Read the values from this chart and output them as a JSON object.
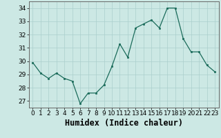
{
  "x": [
    0,
    1,
    2,
    3,
    4,
    5,
    6,
    7,
    8,
    9,
    10,
    11,
    12,
    13,
    14,
    15,
    16,
    17,
    18,
    19,
    20,
    21,
    22,
    23
  ],
  "y": [
    29.9,
    29.1,
    28.7,
    29.1,
    28.7,
    28.5,
    26.8,
    27.6,
    27.6,
    28.2,
    29.6,
    31.3,
    30.3,
    32.5,
    32.8,
    33.1,
    32.5,
    34.0,
    34.0,
    31.7,
    30.7,
    30.7,
    29.7,
    29.2
  ],
  "line_color": "#1a6b5a",
  "marker_color": "#1a6b5a",
  "bg_color": "#cce8e4",
  "grid_color": "#aacfcc",
  "xlabel": "Humidex (Indice chaleur)",
  "ylabel_ticks": [
    27,
    28,
    29,
    30,
    31,
    32,
    33,
    34
  ],
  "ylim": [
    26.5,
    34.5
  ],
  "xlim": [
    -0.5,
    23.5
  ],
  "tick_fontsize": 6.5,
  "xlabel_fontsize": 8.5
}
